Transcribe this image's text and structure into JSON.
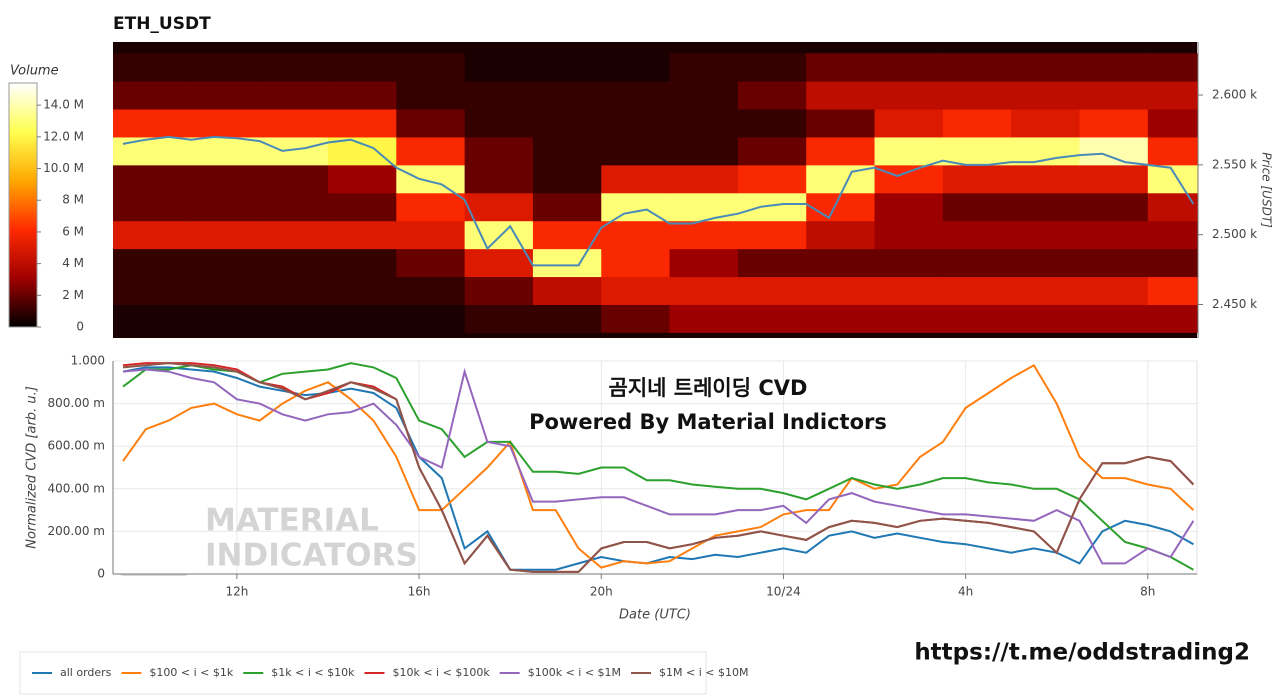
{
  "chart_data": [
    {
      "type": "heatmap",
      "title": "ETH_USDT",
      "ylabel": "Price [USDT]",
      "xlim": [
        9.28,
        33.08
      ],
      "ylim": [
        2426,
        2638
      ],
      "yticks": [
        {
          "value": 2450,
          "label": "2.450 k"
        },
        {
          "value": 2500,
          "label": "2.500 k"
        },
        {
          "value": 2550,
          "label": "2.550 k"
        },
        {
          "value": 2600,
          "label": "2.600 k"
        }
      ],
      "x_edges": [
        9.28,
        11,
        12.5,
        14,
        15.5,
        17,
        18.5,
        20,
        21.5,
        23,
        24.5,
        26,
        27.5,
        29,
        30.5,
        32,
        33.08
      ],
      "y_edges": [
        2430,
        2450,
        2470,
        2490,
        2510,
        2530,
        2550,
        2570,
        2590,
        2610,
        2630
      ],
      "z": [
        [
          500000.0,
          500000.0,
          500000.0,
          500000.0,
          500000.0,
          1000000.0,
          1000000.0,
          2000000.0,
          3000000.0,
          3000000.0,
          3000000.0,
          3000000.0,
          3000000.0,
          3000000.0,
          3000000.0,
          3000000.0
        ],
        [
          1000000.0,
          1000000.0,
          1000000.0,
          1000000.0,
          1000000.0,
          2000000.0,
          4000000.0,
          5000000.0,
          5000000.0,
          5000000.0,
          5000000.0,
          5000000.0,
          5000000.0,
          5000000.0,
          5000000.0,
          6000000.0
        ],
        [
          1000000.0,
          1000000.0,
          1000000.0,
          1000000.0,
          2000000.0,
          5000000.0,
          13000000.0,
          6000000.0,
          3000000.0,
          2000000.0,
          2000000.0,
          2000000.0,
          2000000.0,
          2000000.0,
          2000000.0,
          2000000.0
        ],
        [
          5000000.0,
          5000000.0,
          5000000.0,
          5000000.0,
          5000000.0,
          13000000.0,
          6000000.0,
          6000000.0,
          6000000.0,
          6000000.0,
          4000000.0,
          3000000.0,
          3000000.0,
          3000000.0,
          3000000.0,
          3000000.0
        ],
        [
          2000000.0,
          2000000.0,
          2000000.0,
          2000000.0,
          6000000.0,
          5000000.0,
          2000000.0,
          13000000.0,
          13000000.0,
          13000000.0,
          6000000.0,
          3000000.0,
          2000000.0,
          2000000.0,
          2000000.0,
          4000000.0
        ],
        [
          2000000.0,
          2000000.0,
          2000000.0,
          3000000.0,
          13000000.0,
          2000000.0,
          1000000.0,
          5000000.0,
          5000000.0,
          6000000.0,
          13000000.0,
          6000000.0,
          5000000.0,
          5000000.0,
          5000000.0,
          13000000.0
        ],
        [
          13000000.0,
          13000000.0,
          13000000.0,
          12000000.0,
          6000000.0,
          2000000.0,
          1000000.0,
          1000000.0,
          1000000.0,
          2000000.0,
          6000000.0,
          13000000.0,
          13000000.0,
          13000000.0,
          14000000.0,
          6000000.0
        ],
        [
          6000000.0,
          6000000.0,
          6000000.0,
          6000000.0,
          2000000.0,
          1000000.0,
          1000000.0,
          1000000.0,
          1000000.0,
          1000000.0,
          2000000.0,
          5000000.0,
          6000000.0,
          5000000.0,
          6000000.0,
          3000000.0
        ],
        [
          2000000.0,
          2000000.0,
          2000000.0,
          2000000.0,
          1000000.0,
          1000000.0,
          1000000.0,
          1000000.0,
          1000000.0,
          2000000.0,
          4000000.0,
          4000000.0,
          4000000.0,
          4000000.0,
          4000000.0,
          4000000.0
        ],
        [
          1000000.0,
          1000000.0,
          1000000.0,
          1000000.0,
          1000000.0,
          500000.0,
          500000.0,
          500000.0,
          1000000.0,
          1000000.0,
          2000000.0,
          2000000.0,
          2000000.0,
          2000000.0,
          2000000.0,
          2000000.0
        ]
      ],
      "colormap": [
        "#000000",
        "#a00000",
        "#ff2a00",
        "#ffa800",
        "#ffff50",
        "#ffffff"
      ],
      "colorbar": {
        "title": "Volume",
        "clim": [
          0,
          15400000
        ],
        "ticks": [
          0,
          {
            "value": 2000000,
            "label": "2 M"
          },
          {
            "value": 4000000,
            "label": "4 M"
          },
          {
            "value": 6000000,
            "label": "6 M"
          },
          {
            "value": 8000000,
            "label": "8 M"
          },
          {
            "value": 10000000,
            "label": "10.0 M"
          },
          {
            "value": 12000000,
            "label": "12.0 M"
          },
          {
            "value": 14000000,
            "label": "14.0 M"
          }
        ]
      },
      "x": [
        9.5,
        10,
        10.5,
        11,
        11.5,
        12,
        12.5,
        13,
        13.5,
        14,
        14.5,
        15,
        15.5,
        16,
        16.5,
        17,
        17.5,
        18,
        18.5,
        19,
        19.5,
        20,
        20.5,
        21,
        21.5,
        22,
        22.5,
        23,
        23.5,
        24,
        24.5,
        25,
        25.5,
        26,
        26.5,
        27,
        27.5,
        28,
        28.5,
        29,
        29.5,
        30,
        30.5,
        31,
        31.5,
        32,
        32.5,
        33
      ],
      "line": {
        "color": "#4a8ab8",
        "values": [
          2565,
          2568,
          2570,
          2568,
          2570,
          2569,
          2567,
          2560,
          2562,
          2566,
          2568,
          2562,
          2548,
          2540,
          2536,
          2525,
          2490,
          2506,
          2478,
          2478,
          2478,
          2505,
          2515,
          2518,
          2508,
          2508,
          2512,
          2515,
          2520,
          2522,
          2522,
          2512,
          2545,
          2548,
          2542,
          2548,
          2553,
          2550,
          2550,
          2552,
          2552,
          2555,
          2557,
          2558,
          2552,
          2550,
          2548,
          2522
        ]
      }
    },
    {
      "type": "line",
      "xlabel": "Date (UTC)",
      "ylabel": "Normalized CVD [arb. u.]",
      "xlim": [
        9.28,
        33.08
      ],
      "ylim": [
        0,
        1
      ],
      "xticks": [
        {
          "value": 12,
          "label": "12h"
        },
        {
          "value": 16,
          "label": "16h"
        },
        {
          "value": 20,
          "label": "20h"
        },
        {
          "value": 24,
          "label": "10/24"
        },
        {
          "value": 28,
          "label": "4h"
        },
        {
          "value": 32,
          "label": "8h"
        }
      ],
      "yticks": [
        0,
        {
          "value": 0.2,
          "label": "200.00 m"
        },
        {
          "value": 0.4,
          "label": "400.00 m"
        },
        {
          "value": 0.6,
          "label": "600.00 m"
        },
        {
          "value": 0.8,
          "label": "800.00 m"
        },
        {
          "value": 1,
          "label": "1.000"
        }
      ],
      "grid": true,
      "legend": "bottom-left",
      "annotations": [
        "곰지네 트레이딩 CVD",
        "Powered By Material Indictors"
      ],
      "watermark": [
        "MATERIAL",
        "INDICATORS"
      ],
      "x": [
        9.5,
        10,
        10.5,
        11,
        11.5,
        12,
        12.5,
        13,
        13.5,
        14,
        14.5,
        15,
        15.5,
        16,
        16.5,
        17,
        17.5,
        18,
        18.5,
        19,
        19.5,
        20,
        20.5,
        21,
        21.5,
        22,
        22.5,
        23,
        23.5,
        24,
        24.5,
        25,
        25.5,
        26,
        26.5,
        27,
        27.5,
        28,
        28.5,
        29,
        29.5,
        30,
        30.5,
        31,
        31.5,
        32,
        32.5,
        33
      ],
      "series": [
        {
          "name": "all orders",
          "color": "#1f77b4",
          "values": [
            0.95,
            0.97,
            0.97,
            0.96,
            0.95,
            0.92,
            0.88,
            0.86,
            0.84,
            0.85,
            0.87,
            0.85,
            0.78,
            0.55,
            0.45,
            0.12,
            0.2,
            0.02,
            0.02,
            0.02,
            0.05,
            0.08,
            0.06,
            0.05,
            0.08,
            0.07,
            0.09,
            0.08,
            0.1,
            0.12,
            0.1,
            0.18,
            0.2,
            0.17,
            0.19,
            0.17,
            0.15,
            0.14,
            0.12,
            0.1,
            0.12,
            0.1,
            0.05,
            0.2,
            0.25,
            0.23,
            0.2,
            0.14
          ]
        },
        {
          "name": "$100 < i < $1k",
          "color": "#ff7f0e",
          "values": [
            0.53,
            0.68,
            0.72,
            0.78,
            0.8,
            0.75,
            0.72,
            0.8,
            0.86,
            0.9,
            0.82,
            0.72,
            0.55,
            0.3,
            0.3,
            0.4,
            0.5,
            0.62,
            0.3,
            0.3,
            0.12,
            0.03,
            0.06,
            0.05,
            0.06,
            0.12,
            0.18,
            0.2,
            0.22,
            0.28,
            0.3,
            0.3,
            0.45,
            0.4,
            0.42,
            0.55,
            0.62,
            0.78,
            0.85,
            0.92,
            0.98,
            0.8,
            0.55,
            0.45,
            0.45,
            0.42,
            0.4,
            0.3
          ]
        },
        {
          "name": "$1k < i < $10k",
          "color": "#2ca02c",
          "values": [
            0.88,
            0.96,
            0.96,
            0.98,
            0.96,
            0.95,
            0.9,
            0.94,
            0.95,
            0.96,
            0.99,
            0.97,
            0.92,
            0.72,
            0.68,
            0.55,
            0.62,
            0.62,
            0.48,
            0.48,
            0.47,
            0.5,
            0.5,
            0.44,
            0.44,
            0.42,
            0.41,
            0.4,
            0.4,
            0.38,
            0.35,
            0.4,
            0.45,
            0.42,
            0.4,
            0.42,
            0.45,
            0.45,
            0.43,
            0.42,
            0.4,
            0.4,
            0.35,
            0.25,
            0.15,
            0.12,
            0.08,
            0.02
          ]
        },
        {
          "name": "$10k < i < $100k",
          "color": "#d62728",
          "values": [
            0.98,
            0.99,
            0.99,
            0.99,
            0.98,
            0.96,
            0.9,
            0.88,
            0.82,
            0.85,
            0.9,
            0.88,
            0.82,
            0.5,
            0.3,
            0.05,
            0.18,
            0.02,
            0.01,
            0.01,
            0.01,
            0.12,
            0.15,
            0.15,
            0.12,
            0.14,
            0.17,
            0.18,
            0.2,
            0.18,
            0.16,
            0.22,
            0.25,
            0.24,
            0.22,
            0.25,
            0.26,
            0.25,
            0.24,
            0.22,
            0.2,
            0.1,
            0.35,
            0.52,
            0.52,
            0.55,
            0.53,
            0.42
          ]
        },
        {
          "name": "$100k < i < $1M",
          "color": "#9467bd",
          "values": [
            0.95,
            0.96,
            0.95,
            0.92,
            0.9,
            0.82,
            0.8,
            0.75,
            0.72,
            0.75,
            0.76,
            0.8,
            0.7,
            0.55,
            0.5,
            0.95,
            0.62,
            0.6,
            0.34,
            0.34,
            0.35,
            0.36,
            0.36,
            0.32,
            0.28,
            0.28,
            0.28,
            0.3,
            0.3,
            0.32,
            0.24,
            0.35,
            0.38,
            0.34,
            0.32,
            0.3,
            0.28,
            0.28,
            0.27,
            0.26,
            0.25,
            0.3,
            0.25,
            0.05,
            0.05,
            0.12,
            0.08,
            0.25
          ]
        },
        {
          "name": "$1M < i < $10M",
          "color": "#8c564b",
          "values": [
            0.97,
            0.98,
            0.99,
            0.98,
            0.97,
            0.95,
            0.9,
            0.87,
            0.82,
            0.86,
            0.9,
            0.87,
            0.82,
            0.5,
            0.3,
            0.05,
            0.18,
            0.02,
            0.01,
            0.01,
            0.01,
            0.12,
            0.15,
            0.15,
            0.12,
            0.14,
            0.17,
            0.18,
            0.2,
            0.18,
            0.16,
            0.22,
            0.25,
            0.24,
            0.22,
            0.25,
            0.26,
            0.25,
            0.24,
            0.22,
            0.2,
            0.1,
            0.35,
            0.52,
            0.52,
            0.55,
            0.53,
            0.42
          ]
        }
      ]
    }
  ],
  "footer": {
    "link": "https://t.me/oddstrading2"
  }
}
